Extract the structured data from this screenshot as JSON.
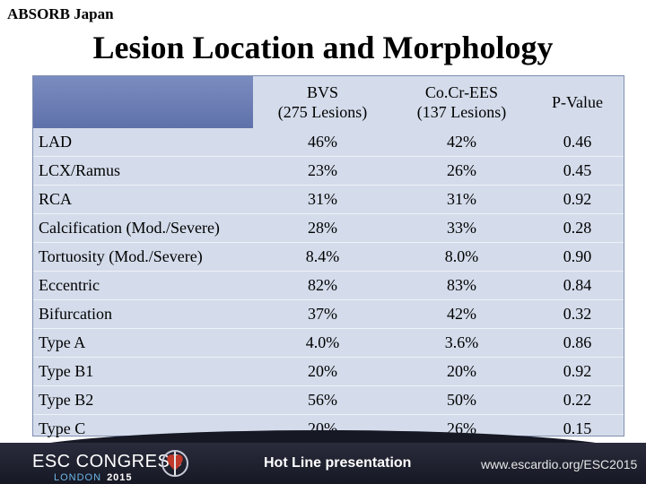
{
  "header": {
    "org": "ABSORB Japan",
    "title": "Lesion Location and Morphology"
  },
  "table": {
    "columns": [
      {
        "line1": "BVS",
        "line2": "(275 Lesions)"
      },
      {
        "line1": "Co.Cr-EES",
        "line2": "(137 Lesions)"
      },
      {
        "line1": "P-Value",
        "line2": ""
      }
    ],
    "rows": [
      {
        "label": "LAD",
        "bvs": "46%",
        "eesc": "42%",
        "p": "0.46"
      },
      {
        "label": "LCX/Ramus",
        "bvs": "23%",
        "eesc": "26%",
        "p": "0.45"
      },
      {
        "label": "RCA",
        "bvs": "31%",
        "eesc": "31%",
        "p": "0.92"
      },
      {
        "label": "Calcification (Mod./Severe)",
        "bvs": "28%",
        "eesc": "33%",
        "p": "0.28"
      },
      {
        "label": "Tortuosity (Mod./Severe)",
        "bvs": "8.4%",
        "eesc": "8.0%",
        "p": "0.90"
      },
      {
        "label": "Eccentric",
        "bvs": "82%",
        "eesc": "83%",
        "p": "0.84"
      },
      {
        "label": "Bifurcation",
        "bvs": "37%",
        "eesc": "42%",
        "p": "0.32"
      },
      {
        "label": "Type A",
        "bvs": "4.0%",
        "eesc": "3.6%",
        "p": "0.86"
      },
      {
        "label": "Type B1",
        "bvs": "20%",
        "eesc": "20%",
        "p": "0.92"
      },
      {
        "label": "Type B2",
        "bvs": "56%",
        "eesc": "50%",
        "p": "0.22"
      },
      {
        "label": "Type C",
        "bvs": "20%",
        "eesc": "26%",
        "p": "0.15"
      }
    ]
  },
  "footer": {
    "congress": "ESC CONGRESS",
    "city": "LONDON",
    "year": "2015",
    "presentation": "Hot Line presentation",
    "website": "www.escardio.org/ESC2015",
    "logo_icon": "esc-heart-logo-icon"
  },
  "colors": {
    "table_bg": "#d4dceb",
    "header_stripe": "#6a7bb4",
    "footer_bg": "#1c1e2c",
    "footer_accent": "#6db6e8"
  }
}
